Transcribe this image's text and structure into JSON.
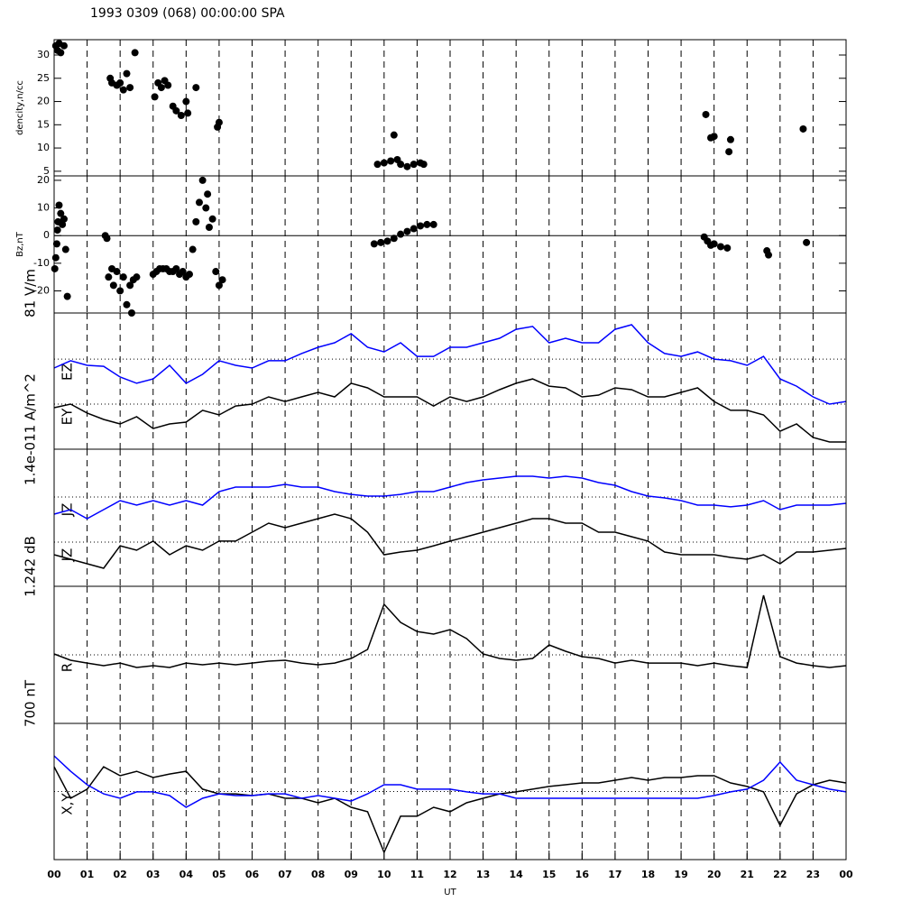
{
  "chart_data": [
    {
      "type": "scatter",
      "title": "1993 0309 (068) 00:00:00 SPA",
      "ylabel": "dencity,n/cc",
      "color": "#000000",
      "ylim": [
        4,
        33.3
      ],
      "yticks": [
        5,
        10,
        15,
        20,
        25,
        30
      ],
      "x": [
        0.05,
        0.1,
        0.15,
        0.2,
        0.3,
        1.7,
        1.75,
        1.9,
        2.0,
        2.1,
        2.2,
        2.3,
        2.45,
        3.05,
        3.15,
        3.25,
        3.35,
        3.45,
        3.6,
        3.7,
        3.85,
        4.0,
        4.05,
        4.3,
        4.95,
        5.0,
        9.8,
        10.0,
        10.2,
        10.3,
        10.4,
        10.5,
        10.7,
        10.9,
        11.1,
        11.2,
        19.75,
        19.9,
        20.0,
        20.45,
        20.5,
        22.7
      ],
      "values": [
        32,
        31,
        32.5,
        30.5,
        32,
        25,
        24,
        23.5,
        24,
        22.5,
        26,
        23,
        30.5,
        21,
        24,
        23,
        24.5,
        23.5,
        19,
        18,
        17,
        20,
        17.5,
        23,
        14.5,
        15.5,
        6.5,
        6.8,
        7.2,
        12.8,
        7.5,
        6.5,
        6,
        6.5,
        6.8,
        6.5,
        17.2,
        12.2,
        12.5,
        9.2,
        11.8,
        14.1
      ]
    },
    {
      "type": "scatter",
      "ylabel": "Bz,nT",
      "color": "#000000",
      "zero_line": true,
      "ylim": [
        -28,
        21.6
      ],
      "yticks": [
        -20,
        -10,
        0,
        10,
        20
      ],
      "x": [
        0.02,
        0.05,
        0.08,
        0.1,
        0.12,
        0.15,
        0.2,
        0.25,
        0.3,
        0.35,
        0.4,
        1.55,
        1.6,
        1.65,
        1.75,
        1.8,
        1.9,
        2.0,
        2.1,
        2.2,
        2.3,
        2.35,
        2.4,
        2.5,
        3.0,
        3.1,
        3.2,
        3.3,
        3.4,
        3.5,
        3.6,
        3.7,
        3.8,
        3.9,
        4.0,
        4.1,
        4.2,
        4.3,
        4.4,
        4.5,
        4.6,
        4.65,
        4.7,
        4.8,
        4.9,
        5.0,
        5.1,
        9.7,
        9.9,
        10.1,
        10.3,
        10.5,
        10.7,
        10.9,
        11.1,
        11.3,
        11.5,
        19.7,
        19.8,
        19.9,
        20.0,
        20.2,
        20.4,
        21.6,
        21.65,
        22.8
      ],
      "values": [
        -12,
        -8,
        -3,
        2,
        5,
        11,
        8,
        4,
        6,
        -5,
        -22,
        0,
        -1,
        -15,
        -12,
        -18,
        -13,
        -20,
        -15,
        -25,
        -18,
        -28,
        -16,
        -15,
        -14,
        -13,
        -12,
        -12,
        -12,
        -13,
        -13,
        -12,
        -14,
        -13,
        -15,
        -14,
        -5,
        5,
        12,
        20,
        10,
        15,
        3,
        6,
        -13,
        -18,
        -16,
        -3,
        -2.5,
        -2,
        -1,
        0.5,
        1.5,
        2.5,
        3.5,
        4,
        4,
        -0.5,
        -2,
        -3.5,
        -3,
        -4,
        -4.5,
        -5.5,
        -7,
        -2.5
      ]
    },
    {
      "type": "line",
      "scale_label": "81 V/m",
      "ylim": [
        0,
        81
      ],
      "ref_lines": [
        53.6,
        26.8
      ],
      "x": [
        0,
        0.5,
        1,
        1.5,
        2,
        2.5,
        3,
        3.5,
        4,
        4.5,
        5,
        5.5,
        6,
        6.5,
        7,
        7.5,
        8,
        8.5,
        9,
        9.5,
        10,
        10.5,
        11,
        11.5,
        12,
        12.5,
        13,
        13.5,
        14,
        14.5,
        15,
        15.5,
        16,
        16.5,
        17,
        17.5,
        18,
        18.5,
        19,
        19.5,
        20,
        20.5,
        21,
        21.5,
        22,
        22.5,
        23,
        23.5,
        24
      ],
      "series": [
        {
          "name": "EZ",
          "color": "#0000ff",
          "values": [
            48.3,
            52.6,
            49.9,
            49.3,
            42.9,
            39.2,
            41.8,
            49.9,
            39.2,
            44.5,
            52.6,
            49.9,
            48.3,
            52.6,
            52.6,
            56.9,
            60.6,
            63.3,
            68.7,
            60.6,
            57.9,
            63.3,
            55.2,
            55.2,
            60.6,
            60.6,
            63.3,
            66.0,
            71.3,
            73.0,
            63.3,
            66.0,
            63.3,
            63.3,
            71.3,
            74.0,
            63.3,
            56.9,
            55.2,
            57.9,
            53.6,
            52.6,
            49.9,
            55.2,
            41.8,
            37.5,
            31.1,
            26.8,
            28.4
          ]
        },
        {
          "name": "EY",
          "color": "#000000",
          "values": [
            24.7,
            26.8,
            21.5,
            17.7,
            15.0,
            19.3,
            12.3,
            15.0,
            16.1,
            23.1,
            20.4,
            25.7,
            26.8,
            31.1,
            28.4,
            31.1,
            33.8,
            31.1,
            39.2,
            36.5,
            31.1,
            31.1,
            31.1,
            25.7,
            31.1,
            28.4,
            31.1,
            35.4,
            39.2,
            41.8,
            37.5,
            36.5,
            31.1,
            32.2,
            36.5,
            35.4,
            31.1,
            31.1,
            33.8,
            36.5,
            28.4,
            23.1,
            23.1,
            20.4,
            10.7,
            15.0,
            7.0,
            4.3,
            4.3
          ]
        }
      ]
    },
    {
      "type": "line",
      "scale_label": "1.4e-011 A/m^2",
      "ylim": [
        0,
        1.4e-11
      ],
      "ref_lines": [
        9.12e-12,
        4.51e-12
      ],
      "x": [
        0,
        0.5,
        1,
        1.5,
        2,
        2.5,
        3,
        3.5,
        4,
        4.5,
        5,
        5.5,
        6,
        6.5,
        7,
        7.5,
        8,
        8.5,
        9,
        9.5,
        10,
        10.5,
        11,
        11.5,
        12,
        12.5,
        13,
        13.5,
        14,
        14.5,
        15,
        15.5,
        16,
        16.5,
        17,
        17.5,
        18,
        18.5,
        19,
        19.5,
        20,
        20.5,
        21,
        21.5,
        22,
        22.5,
        23,
        23.5,
        24
      ],
      "series": [
        {
          "name": "JZ",
          "color": "#0000ff",
          "values": [
            7.37e-12,
            7.83e-12,
            6.91e-12,
            7.83e-12,
            8.75e-12,
            8.29e-12,
            8.75e-12,
            8.29e-12,
            8.75e-12,
            8.29e-12,
            9.67e-12,
            1.013e-11,
            1.013e-11,
            1.013e-11,
            1.041e-11,
            1.013e-11,
            1.013e-11,
            9.67e-12,
            9.39e-12,
            9.21e-12,
            9.21e-12,
            9.39e-12,
            9.67e-12,
            9.67e-12,
            1.013e-11,
            1.059e-11,
            1.087e-11,
            1.105e-11,
            1.124e-11,
            1.124e-11,
            1.105e-11,
            1.124e-11,
            1.105e-11,
            1.059e-11,
            1.032e-11,
            9.67e-12,
            9.21e-12,
            9.03e-12,
            8.75e-12,
            8.29e-12,
            8.29e-12,
            8.11e-12,
            8.29e-12,
            8.75e-12,
            7.83e-12,
            8.29e-12,
            8.29e-12,
            8.29e-12,
            8.47e-12
          ]
        },
        {
          "name": "JZ",
          "color": "#000000",
          "values": [
            3.22e-12,
            2.76e-12,
            2.3e-12,
            1.84e-12,
            4.14e-12,
            3.68e-12,
            4.61e-12,
            3.22e-12,
            4.14e-12,
            3.68e-12,
            4.61e-12,
            4.61e-12,
            5.53e-12,
            6.45e-12,
            5.99e-12,
            6.45e-12,
            6.91e-12,
            7.37e-12,
            6.91e-12,
            5.53e-12,
            3.22e-12,
            3.5e-12,
            3.68e-12,
            4.14e-12,
            4.61e-12,
            5.07e-12,
            5.53e-12,
            5.99e-12,
            6.45e-12,
            6.91e-12,
            6.91e-12,
            6.45e-12,
            6.45e-12,
            5.53e-12,
            5.53e-12,
            5.07e-12,
            4.61e-12,
            3.5e-12,
            3.22e-12,
            3.22e-12,
            3.22e-12,
            2.95e-12,
            2.76e-12,
            3.22e-12,
            2.3e-12,
            3.5e-12,
            3.5e-12,
            3.68e-12,
            3.87e-12
          ]
        }
      ]
    },
    {
      "type": "line",
      "scale_label": "1.242 dB",
      "ylim": [
        0,
        1.242
      ],
      "ref_lines": [
        0.621
      ],
      "x": [
        0,
        0.5,
        1,
        1.5,
        2,
        2.5,
        3,
        3.5,
        4,
        4.5,
        5,
        5.5,
        6,
        6.5,
        7,
        7.5,
        8,
        8.5,
        9,
        9.5,
        10,
        10.5,
        11,
        11.5,
        12,
        12.5,
        13,
        13.5,
        14,
        14.5,
        15,
        15.5,
        16,
        16.5,
        17,
        17.5,
        18,
        18.5,
        19,
        19.5,
        20,
        20.5,
        21,
        21.5,
        22,
        22.5,
        23,
        23.5,
        24
      ],
      "series": [
        {
          "name": "R",
          "color": "#000000",
          "values": [
            0.629,
            0.572,
            0.547,
            0.523,
            0.547,
            0.507,
            0.523,
            0.507,
            0.547,
            0.531,
            0.547,
            0.531,
            0.547,
            0.564,
            0.572,
            0.547,
            0.531,
            0.547,
            0.588,
            0.67,
            1.079,
            0.915,
            0.833,
            0.809,
            0.85,
            0.768,
            0.629,
            0.588,
            0.572,
            0.588,
            0.711,
            0.654,
            0.605,
            0.588,
            0.547,
            0.572,
            0.547,
            0.547,
            0.547,
            0.523,
            0.547,
            0.523,
            0.507,
            1.16,
            0.605,
            0.547,
            0.523,
            0.507,
            0.523
          ]
        }
      ]
    },
    {
      "type": "line",
      "scale_label": "700 nT",
      "label": "X,Y",
      "ylim": [
        0,
        700
      ],
      "ref_lines": [
        350
      ],
      "xlabel": "UT",
      "xlim": [
        0,
        24
      ],
      "xticks": [
        {
          "value": 0,
          "label": "00"
        },
        {
          "value": 1,
          "label": "01"
        },
        {
          "value": 2,
          "label": "02"
        },
        {
          "value": 3,
          "label": "03"
        },
        {
          "value": 4,
          "label": "04"
        },
        {
          "value": 5,
          "label": "05"
        },
        {
          "value": 6,
          "label": "06"
        },
        {
          "value": 7,
          "label": "07"
        },
        {
          "value": 8,
          "label": "08"
        },
        {
          "value": 9,
          "label": "09"
        },
        10,
        11,
        12,
        13,
        14,
        15,
        16,
        17,
        18,
        19,
        20,
        21,
        22,
        23,
        {
          "value": 24,
          "label": "00"
        }
      ],
      "x": [
        0,
        0.5,
        1,
        1.5,
        2,
        2.5,
        3,
        3.5,
        4,
        4.5,
        5,
        5.5,
        6,
        6.5,
        7,
        7.5,
        8,
        8.5,
        9,
        9.5,
        10,
        10.5,
        11,
        11.5,
        12,
        12.5,
        13,
        13.5,
        14,
        14.5,
        15,
        15.5,
        16,
        16.5,
        17,
        17.5,
        18,
        18.5,
        19,
        19.5,
        20,
        20.5,
        21,
        21.5,
        22,
        22.5,
        23,
        23.5,
        24
      ],
      "series": [
        {
          "color": "#000000",
          "values": [
            477,
            315,
            362,
            477,
            431,
            454,
            422,
            440,
            454,
            362,
            338,
            338,
            329,
            338,
            315,
            315,
            292,
            315,
            269,
            246,
            37,
            223,
            223,
            269,
            246,
            292,
            315,
            338,
            348,
            362,
            376,
            385,
            394,
            394,
            408,
            422,
            408,
            422,
            422,
            431,
            431,
            394,
            376,
            348,
            176,
            338,
            385,
            408,
            394
          ]
        },
        {
          "color": "#0000ff",
          "values": [
            533,
            454,
            385,
            338,
            315,
            348,
            348,
            329,
            269,
            315,
            338,
            329,
            329,
            338,
            338,
            315,
            329,
            315,
            301,
            338,
            385,
            385,
            362,
            362,
            362,
            348,
            338,
            338,
            315,
            315,
            315,
            315,
            315,
            315,
            315,
            315,
            315,
            315,
            315,
            315,
            329,
            348,
            362,
            408,
            501,
            408,
            385,
            362,
            348
          ]
        }
      ]
    }
  ]
}
